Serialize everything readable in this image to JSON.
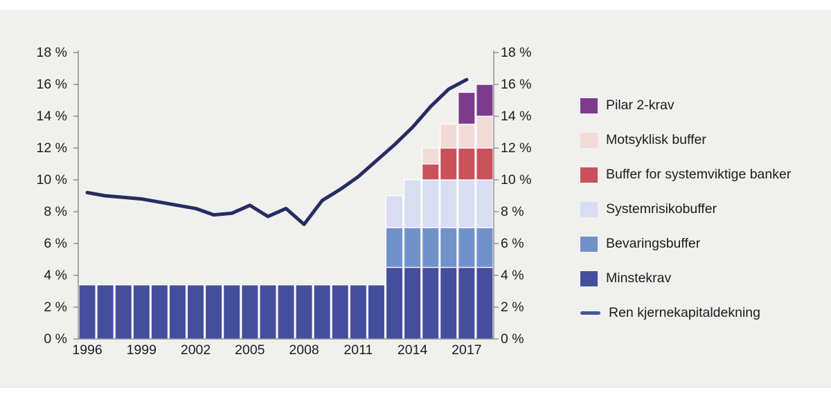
{
  "figure": {
    "description": "Krav til ren kjernekapitaldekning og bankenes rene kjernekapitaldekning 1996-2018",
    "colors": {
      "background": "#f0f0ee",
      "top_strip": "#ffffff",
      "axis": "#8c8c8c",
      "text": "#1c1c1c",
      "bar_outline": "#ffffff"
    }
  },
  "chart_data": {
    "type": "bar",
    "subtype": "stacked-bars-with-line",
    "years": [
      1996,
      1997,
      1998,
      1999,
      2000,
      2001,
      2002,
      2003,
      2004,
      2005,
      2006,
      2007,
      2008,
      2009,
      2010,
      2011,
      2012,
      2013,
      2014,
      2015,
      2016,
      2017,
      2018
    ],
    "series": [
      {
        "id": "minstekrav",
        "name": "Minstekrav",
        "color": "#454e9c",
        "values": [
          3.4,
          3.4,
          3.4,
          3.4,
          3.4,
          3.4,
          3.4,
          3.4,
          3.4,
          3.4,
          3.4,
          3.4,
          3.4,
          3.4,
          3.4,
          3.4,
          3.4,
          4.5,
          4.5,
          4.5,
          4.5,
          4.5,
          4.5
        ]
      },
      {
        "id": "bevaringsbuffer",
        "name": "Bevaringsbuffer",
        "color": "#7191c9",
        "values": [
          0,
          0,
          0,
          0,
          0,
          0,
          0,
          0,
          0,
          0,
          0,
          0,
          0,
          0,
          0,
          0,
          0,
          2.5,
          2.5,
          2.5,
          2.5,
          2.5,
          2.5
        ]
      },
      {
        "id": "systemrisikobuffer",
        "name": "Systemrisikobuffer",
        "color": "#d8ddf1",
        "values": [
          0,
          0,
          0,
          0,
          0,
          0,
          0,
          0,
          0,
          0,
          0,
          0,
          0,
          0,
          0,
          0,
          0,
          2,
          3,
          3,
          3,
          3,
          3
        ]
      },
      {
        "id": "systemviktige",
        "name": "Buffer for systemviktige banker",
        "color": "#c9515a",
        "values": [
          0,
          0,
          0,
          0,
          0,
          0,
          0,
          0,
          0,
          0,
          0,
          0,
          0,
          0,
          0,
          0,
          0,
          0,
          0,
          1,
          2,
          2,
          2
        ]
      },
      {
        "id": "motsyklisk",
        "name": "Motsyklisk buffer",
        "color": "#f2dad7",
        "values": [
          0,
          0,
          0,
          0,
          0,
          0,
          0,
          0,
          0,
          0,
          0,
          0,
          0,
          0,
          0,
          0,
          0,
          0,
          0,
          1,
          1.5,
          1.5,
          2
        ]
      },
      {
        "id": "pilar2",
        "name": "Pilar 2-krav",
        "color": "#7c3b8d",
        "values": [
          0,
          0,
          0,
          0,
          0,
          0,
          0,
          0,
          0,
          0,
          0,
          0,
          0,
          0,
          0,
          0,
          0,
          0,
          0,
          0,
          0,
          2,
          2
        ]
      }
    ],
    "line": {
      "id": "ren-kjernekapitaldekning",
      "name": "Ren kjernekapitaldekning",
      "color": "#272c62",
      "years": [
        1996,
        1997,
        1998,
        1999,
        2000,
        2001,
        2002,
        2003,
        2004,
        2005,
        2006,
        2007,
        2008,
        2009,
        2010,
        2011,
        2012,
        2013,
        2014,
        2015,
        2016,
        2017
      ],
      "values": [
        9.2,
        9.0,
        8.9,
        8.8,
        8.6,
        8.4,
        8.2,
        7.8,
        7.9,
        8.4,
        7.7,
        8.2,
        7.2,
        8.7,
        9.4,
        10.2,
        11.2,
        12.2,
        13.3,
        14.6,
        15.7,
        16.3
      ]
    },
    "y_axis": {
      "min": 0,
      "max": 18,
      "tick_step": 2,
      "tick_values": [
        0,
        2,
        4,
        6,
        8,
        10,
        12,
        14,
        16,
        18
      ],
      "tick_labels": [
        "0 %",
        "2 %",
        "4 %",
        "6 %",
        "8 %",
        "10 %",
        "12 %",
        "14 %",
        "16 %",
        "18 %"
      ],
      "sides": [
        "left",
        "right"
      ],
      "grid": false
    },
    "x_axis": {
      "tick_years": [
        1996,
        1999,
        2002,
        2005,
        2008,
        2011,
        2014,
        2017
      ],
      "tick_labels": [
        "1996",
        "1999",
        "2002",
        "2005",
        "2008",
        "2011",
        "2014",
        "2017"
      ]
    },
    "legend_position": "right"
  },
  "legend": {
    "items": [
      {
        "label": "Pilar 2-krav",
        "color": "#7c3b8d",
        "type": "swatch"
      },
      {
        "label": "Motsyklisk buffer",
        "color": "#f2dad7",
        "type": "swatch"
      },
      {
        "label": "Buffer for systemviktige banker",
        "color": "#c9515a",
        "type": "swatch"
      },
      {
        "label": "Systemrisikobuffer",
        "color": "#d8ddf1",
        "type": "swatch"
      },
      {
        "label": "Bevaringsbuffer",
        "color": "#7191c9",
        "type": "swatch"
      },
      {
        "label": "Minstekrav",
        "color": "#454e9c",
        "type": "swatch"
      },
      {
        "label": "Ren kjernekapitaldekning",
        "color": "#44549e",
        "type": "line"
      }
    ]
  }
}
